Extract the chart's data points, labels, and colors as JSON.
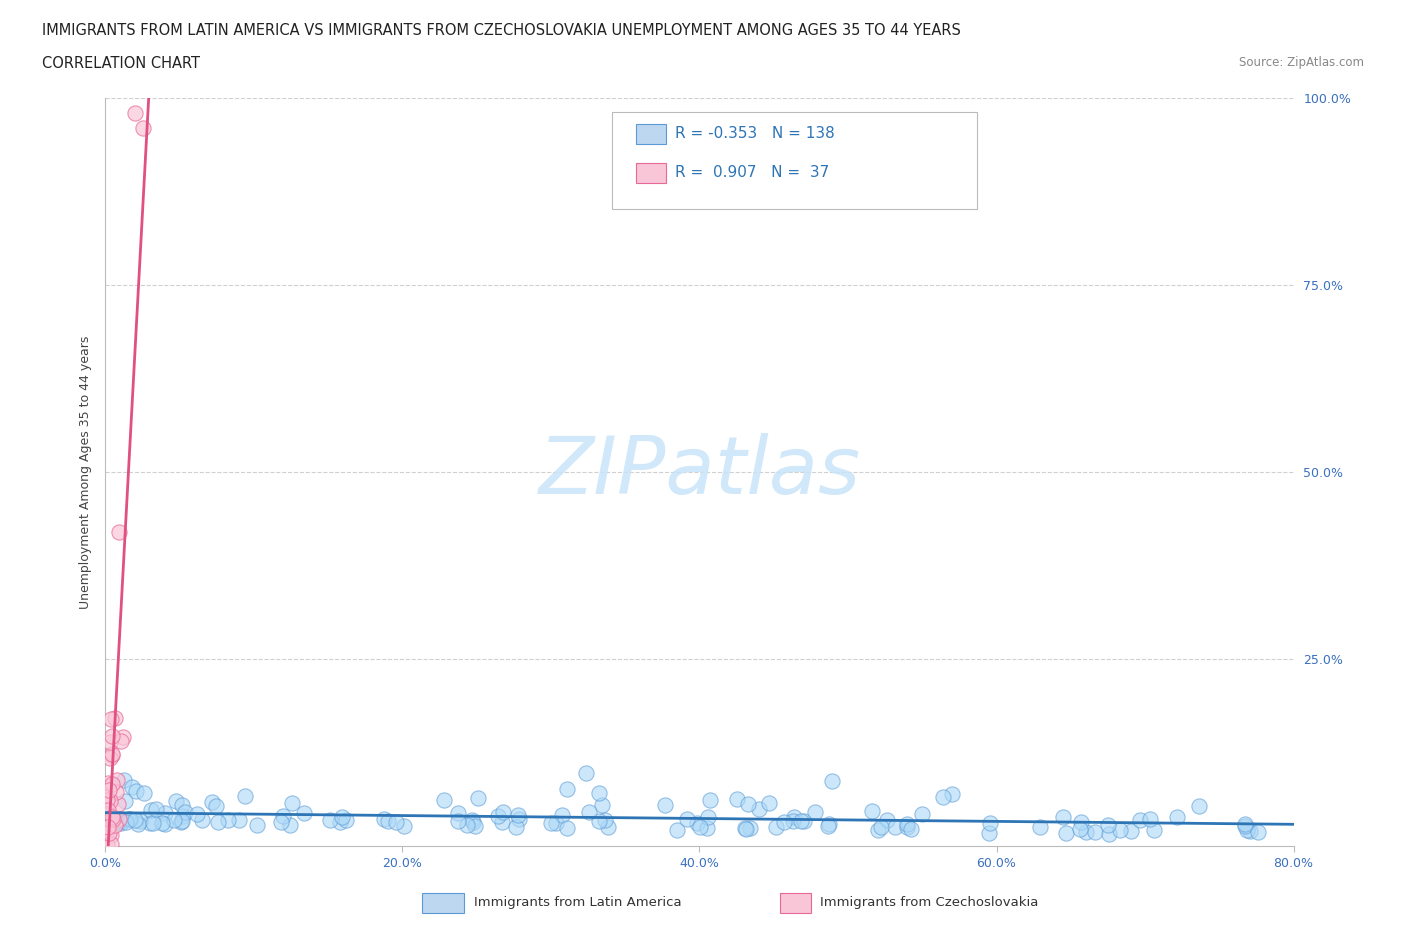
{
  "title_line1": "IMMIGRANTS FROM LATIN AMERICA VS IMMIGRANTS FROM CZECHOSLOVAKIA UNEMPLOYMENT AMONG AGES 35 TO 44 YEARS",
  "title_line2": "CORRELATION CHART",
  "source_text": "Source: ZipAtlas.com",
  "ylabel": "Unemployment Among Ages 35 to 44 years",
  "xlim": [
    0.0,
    0.8
  ],
  "ylim": [
    0.0,
    1.0
  ],
  "xtick_labels": [
    "0.0%",
    "20.0%",
    "40.0%",
    "60.0%",
    "80.0%"
  ],
  "xtick_values": [
    0.0,
    0.2,
    0.4,
    0.6,
    0.8
  ],
  "ytick_labels": [
    "25.0%",
    "50.0%",
    "75.0%",
    "100.0%"
  ],
  "ytick_values": [
    0.25,
    0.5,
    0.75,
    1.0
  ],
  "series": [
    {
      "name": "Immigrants from Latin America",
      "R": -0.353,
      "N": 138,
      "color": "#add8f7",
      "edge_color": "#5b9bd5",
      "line_color": "#2e75b6"
    },
    {
      "name": "Immigrants from Czechoslovakia",
      "R": 0.907,
      "N": 37,
      "color": "#f9c6d8",
      "edge_color": "#e86898",
      "line_color": "#e05080"
    }
  ],
  "legend_box_colors": [
    "#bdd7f0",
    "#f9c6d8"
  ],
  "legend_R_color": "#2e75b6",
  "watermark": "ZIPatlas",
  "background_color": "#ffffff",
  "title_fontsize": 10.5,
  "subtitle_fontsize": 10.5,
  "axis_label_fontsize": 9,
  "tick_fontsize": 9,
  "legend_fontsize": 11
}
